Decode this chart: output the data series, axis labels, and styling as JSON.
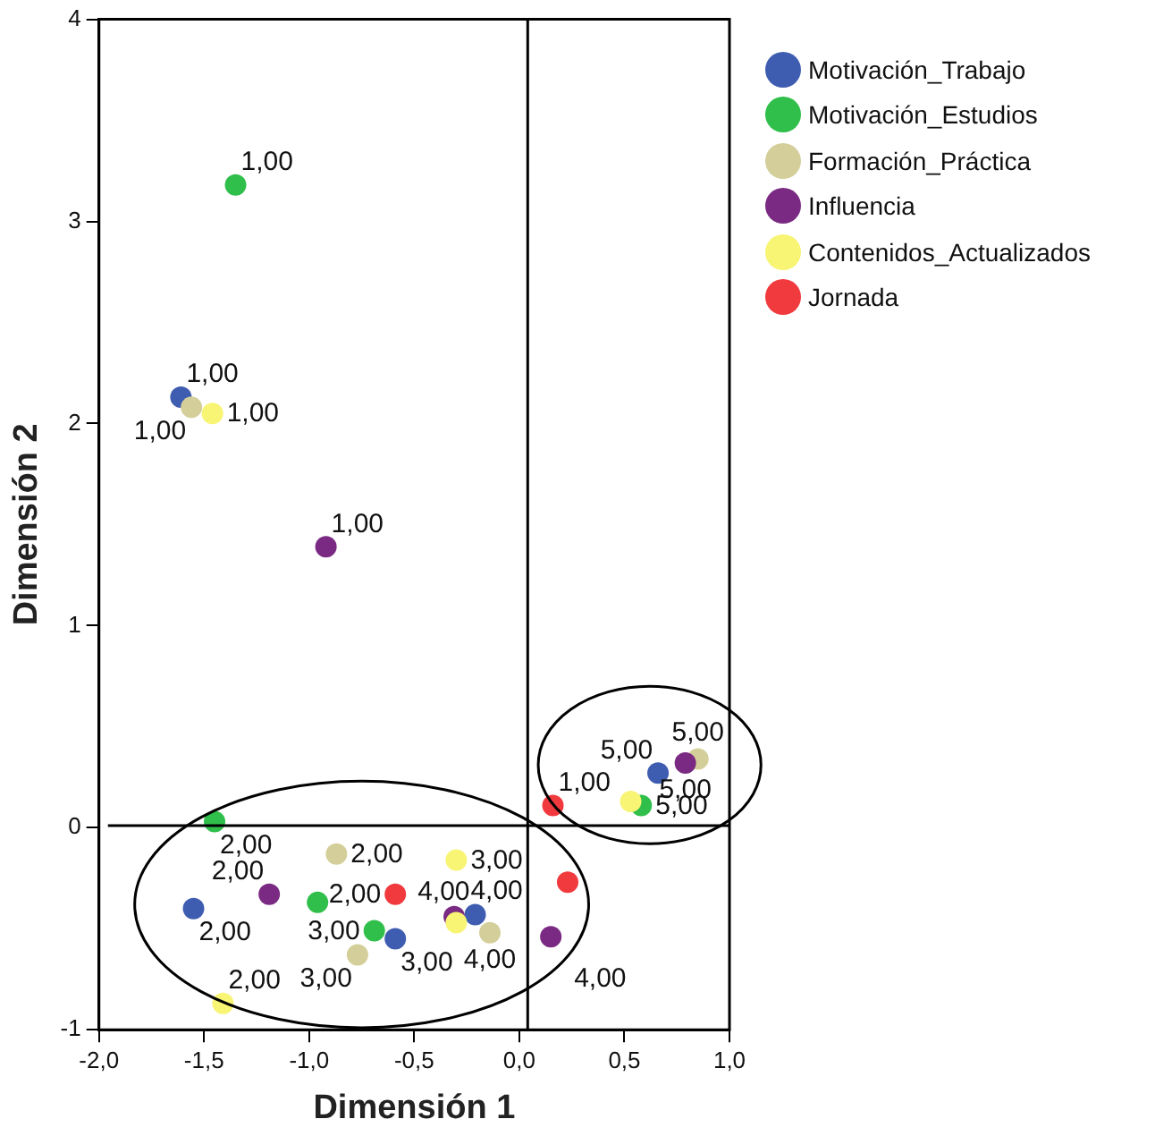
{
  "chart_data": {
    "type": "scatter",
    "xlabel": "Dimensión 1",
    "ylabel": "Dimensión 2",
    "xlim": [
      -2.0,
      1.0
    ],
    "ylim": [
      -1,
      4
    ],
    "xticks": [
      {
        "value": -2.0,
        "label": "-2,0"
      },
      {
        "value": -1.5,
        "label": "-1,5"
      },
      {
        "value": -1.0,
        "label": "-1,0"
      },
      {
        "value": -0.5,
        "label": "-0,5"
      },
      {
        "value": 0.0,
        "label": "0,0"
      },
      {
        "value": 0.5,
        "label": "0,5"
      },
      {
        "value": 1.0,
        "label": "1,0"
      }
    ],
    "yticks": [
      -1,
      0,
      1,
      2,
      3,
      4
    ],
    "grid": false,
    "legend": "right",
    "marker": "circle",
    "ref_lines": [
      {
        "axis": "x",
        "value": 0.04,
        "color": "#000000"
      },
      {
        "axis": "y",
        "value": 0.01,
        "color": "#000000"
      }
    ],
    "series": [
      {
        "name": "Motivación_Trabajo",
        "color": "#3f5db0",
        "x": [
          -1.61,
          -1.55,
          -0.59,
          -0.21,
          0.66
        ],
        "values": [
          2.13,
          -0.4,
          -0.55,
          -0.43,
          0.27
        ]
      },
      {
        "name": "Motivación_Estudios",
        "color": "#2fbf4a",
        "x": [
          -1.35,
          -1.45,
          -0.96,
          -0.69,
          0.58
        ],
        "values": [
          3.18,
          0.03,
          -0.37,
          -0.51,
          0.11
        ]
      },
      {
        "name": "Formación_Práctica",
        "color": "#d4cf9a",
        "x": [
          -1.56,
          -0.87,
          -0.77,
          -0.14,
          0.85
        ],
        "values": [
          2.08,
          -0.13,
          -0.63,
          -0.52,
          0.34
        ]
      },
      {
        "name": "Influencia",
        "color": "#7a2a82",
        "x": [
          -0.92,
          -1.19,
          -0.31,
          0.15,
          0.79
        ],
        "values": [
          1.39,
          -0.33,
          -0.44,
          -0.54,
          0.32
        ]
      },
      {
        "name": "Contenidos_Actualizados",
        "color": "#f8f474",
        "x": [
          -1.46,
          -1.41,
          -0.3,
          -0.3,
          0.53
        ],
        "values": [
          2.05,
          -0.87,
          -0.16,
          -0.47,
          0.13
        ]
      },
      {
        "name": "Jornada",
        "color": "#f03a3e",
        "x": [
          0.16,
          -0.59,
          0.23
        ],
        "values": [
          0.11,
          -0.33,
          -0.27
        ]
      }
    ],
    "annotations": [
      {
        "text": "1,00",
        "x": -1.35,
        "y": 3.18
      },
      {
        "text": "1,00",
        "x": -1.61,
        "y": 2.13
      },
      {
        "text": "1,00",
        "x": -1.56,
        "y": 2.08
      },
      {
        "text": "1,00",
        "x": -1.46,
        "y": 2.05
      },
      {
        "text": "1,00",
        "x": -0.92,
        "y": 1.39
      },
      {
        "text": "1,00",
        "x": 0.16,
        "y": 0.11
      },
      {
        "text": "2,00",
        "x": -1.45,
        "y": 0.03
      },
      {
        "text": "2,00",
        "x": -0.87,
        "y": -0.13
      },
      {
        "text": "2,00",
        "x": -1.19,
        "y": -0.33
      },
      {
        "text": "2,00",
        "x": -1.55,
        "y": -0.4
      },
      {
        "text": "2,00",
        "x": -1.41,
        "y": -0.87
      },
      {
        "text": "2,00",
        "x": -0.59,
        "y": -0.33
      },
      {
        "text": "3,00",
        "x": -0.3,
        "y": -0.16
      },
      {
        "text": "3,00",
        "x": -0.69,
        "y": -0.51
      },
      {
        "text": "3,00",
        "x": -0.59,
        "y": -0.55
      },
      {
        "text": "3,00",
        "x": -0.77,
        "y": -0.63
      },
      {
        "text": "4,00",
        "x": -0.21,
        "y": -0.43
      },
      {
        "text": "4,00",
        "x": 0.15,
        "y": -0.54
      },
      {
        "text": "4,00",
        "x": -0.3,
        "y": -0.47
      },
      {
        "text": "4,00",
        "x": -0.14,
        "y": -0.52
      },
      {
        "text": "5,00",
        "x": 0.66,
        "y": 0.27
      },
      {
        "text": "5,00",
        "x": 0.85,
        "y": 0.34
      },
      {
        "text": "5,00",
        "x": 0.79,
        "y": 0.32
      },
      {
        "text": "5,00",
        "x": 0.58,
        "y": 0.11
      }
    ]
  }
}
